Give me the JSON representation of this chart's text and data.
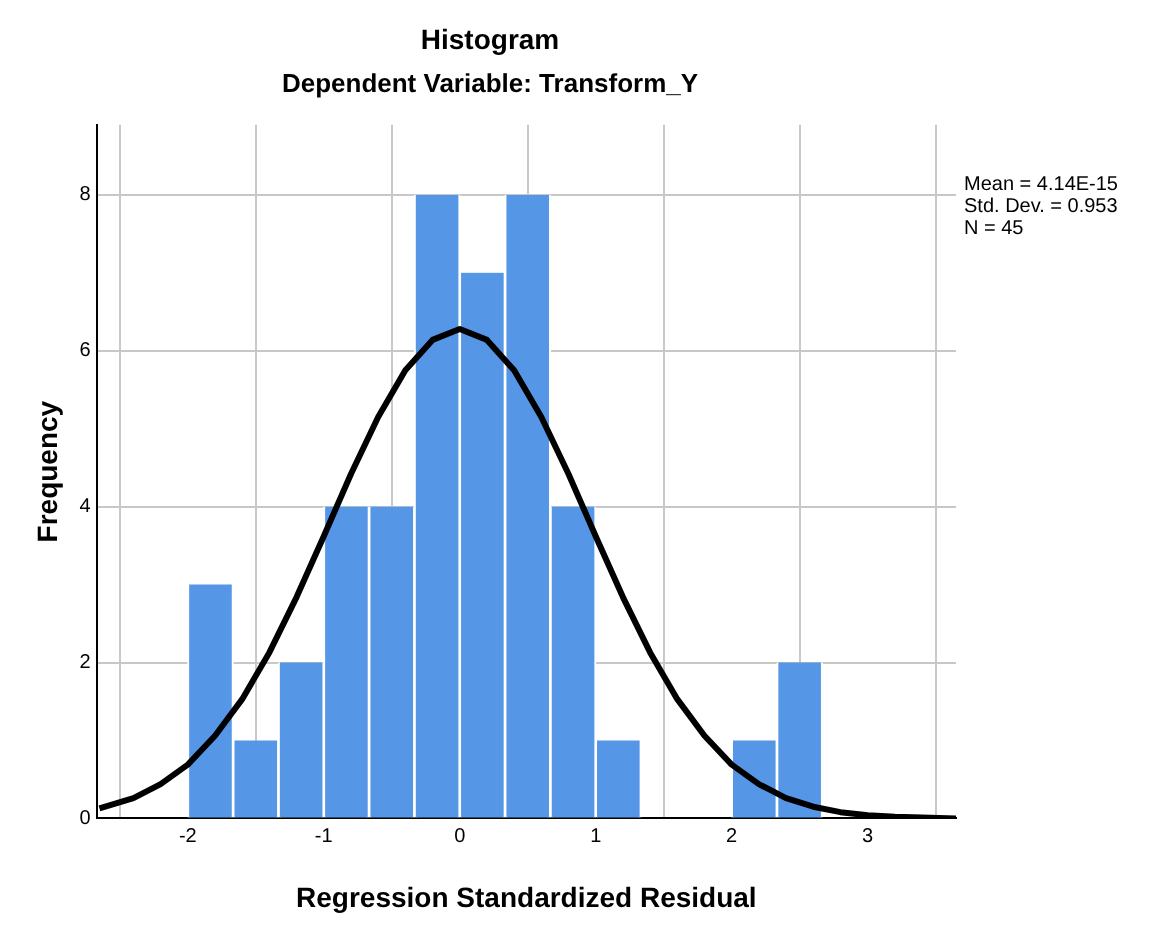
{
  "chart_data": {
    "type": "histogram",
    "title": "Histogram",
    "subtitle": "Dependent Variable: Transform_Y",
    "xlabel": "Regression Standardized Residual",
    "ylabel": "Frequency",
    "bins": [
      -2,
      -1.667,
      -1.333,
      -1,
      -0.667,
      -0.333,
      0,
      0.333,
      0.667,
      1,
      1.333,
      1.667,
      2,
      2.333,
      2.667
    ],
    "values": [
      3,
      1,
      2,
      4,
      4,
      8,
      7,
      8,
      4,
      1,
      0,
      0,
      1,
      2
    ],
    "color": "#5596e6",
    "series": [
      {
        "type": "line",
        "color": "#000000",
        "x": [
          -2.65,
          -2.4,
          -2.2,
          -2,
          -1.8,
          -1.6,
          -1.4,
          -1.2,
          -1,
          -0.8,
          -0.6,
          -0.4,
          -0.2,
          0,
          0.2,
          0.4,
          0.6,
          0.8,
          1,
          1.2,
          1.4,
          1.6,
          1.8,
          2,
          2.2,
          2.4,
          2.6,
          2.8,
          3,
          3.2,
          3.4,
          3.65
        ],
        "values": [
          0.13,
          0.26,
          0.44,
          0.69,
          1.06,
          1.53,
          2.13,
          2.84,
          3.62,
          4.42,
          5.15,
          5.75,
          6.14,
          6.28,
          6.14,
          5.75,
          5.15,
          4.42,
          3.62,
          2.84,
          2.13,
          1.53,
          1.06,
          0.69,
          0.44,
          0.26,
          0.15,
          0.08,
          0.04,
          0.02,
          0.01,
          0
        ]
      }
    ],
    "annotations": [
      "Mean = 4.14E-15",
      "Std. Dev. = 0.953",
      "N = 45"
    ],
    "xlim": [
      -2.67,
      3.65
    ],
    "ylim": [
      0,
      8.9
    ],
    "xticks": [
      -2,
      -1,
      0,
      1,
      2,
      3
    ],
    "yticks": [
      0,
      2,
      4,
      6,
      8
    ],
    "grid": true,
    "legend": false,
    "marker": "none",
    "line_style": "solid"
  }
}
